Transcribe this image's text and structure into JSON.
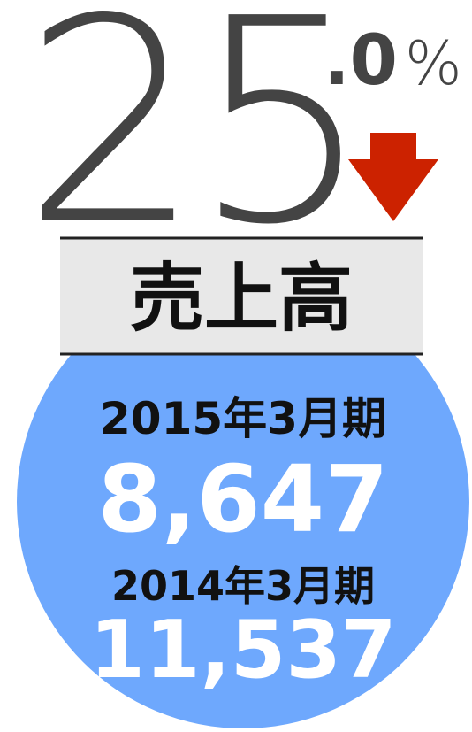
{
  "headline": {
    "integer": "25",
    "decimal": ".0",
    "unit": "%"
  },
  "label": "売上高",
  "periods": [
    {
      "period": "2015年3月期",
      "value": "8,647"
    },
    {
      "period": "2014年3月期",
      "value": "11,537"
    }
  ]
}
